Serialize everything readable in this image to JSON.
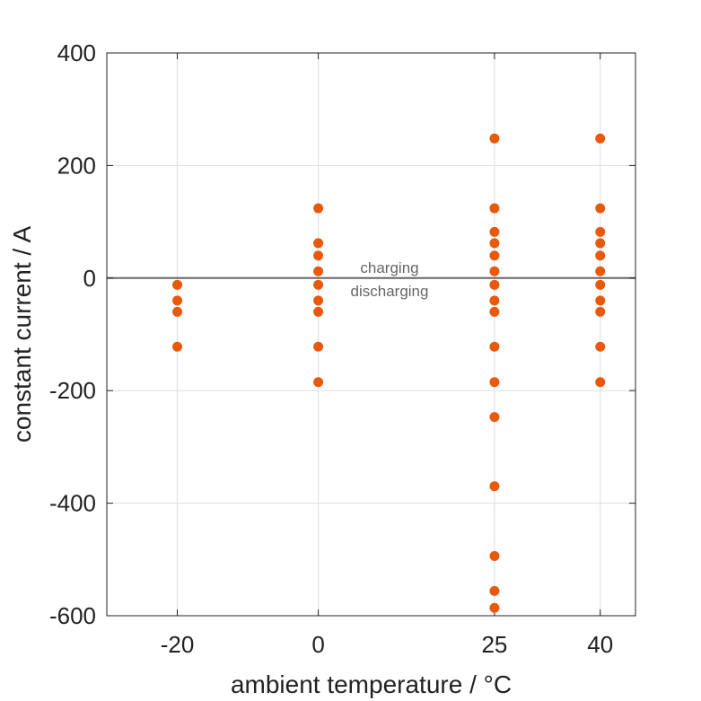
{
  "chart_data": {
    "type": "scatter",
    "xlabel": "ambient temperature / °C",
    "ylabel": "constant current / A",
    "xlim": [
      -30,
      45
    ],
    "ylim": [
      -600,
      400
    ],
    "xticks": [
      -20,
      0,
      25,
      40
    ],
    "xtick_labels": [
      "-20",
      "0",
      "25",
      "40"
    ],
    "yticks": [
      400,
      200,
      0,
      -200,
      -400,
      -600
    ],
    "ytick_labels": [
      "400",
      "200",
      "0",
      "-200",
      "-400",
      "-600"
    ],
    "grid": true,
    "reference_line_y": 0,
    "annotations": {
      "above": "charging",
      "below": "discharging"
    },
    "colors": {
      "points": "#e8590c",
      "reference_line": "#666666",
      "grid": "#dddddd",
      "frame": "#222222"
    },
    "series": [
      {
        "points": [
          {
            "x": -20,
            "y": -12
          },
          {
            "x": -20,
            "y": -40
          },
          {
            "x": -20,
            "y": -60
          },
          {
            "x": -20,
            "y": -122
          },
          {
            "x": 0,
            "y": 124
          },
          {
            "x": 0,
            "y": 62
          },
          {
            "x": 0,
            "y": 40
          },
          {
            "x": 0,
            "y": 12
          },
          {
            "x": 0,
            "y": -12
          },
          {
            "x": 0,
            "y": -40
          },
          {
            "x": 0,
            "y": -60
          },
          {
            "x": 0,
            "y": -122
          },
          {
            "x": 0,
            "y": -185
          },
          {
            "x": 25,
            "y": 248
          },
          {
            "x": 25,
            "y": 124
          },
          {
            "x": 25,
            "y": 82
          },
          {
            "x": 25,
            "y": 62
          },
          {
            "x": 25,
            "y": 40
          },
          {
            "x": 25,
            "y": 12
          },
          {
            "x": 25,
            "y": -12
          },
          {
            "x": 25,
            "y": -40
          },
          {
            "x": 25,
            "y": -60
          },
          {
            "x": 25,
            "y": -122
          },
          {
            "x": 25,
            "y": -185
          },
          {
            "x": 25,
            "y": -247
          },
          {
            "x": 25,
            "y": -370
          },
          {
            "x": 25,
            "y": -494
          },
          {
            "x": 25,
            "y": -556
          },
          {
            "x": 25,
            "y": -586
          },
          {
            "x": 40,
            "y": 248
          },
          {
            "x": 40,
            "y": 124
          },
          {
            "x": 40,
            "y": 82
          },
          {
            "x": 40,
            "y": 62
          },
          {
            "x": 40,
            "y": 40
          },
          {
            "x": 40,
            "y": 12
          },
          {
            "x": 40,
            "y": -12
          },
          {
            "x": 40,
            "y": -40
          },
          {
            "x": 40,
            "y": -60
          },
          {
            "x": 40,
            "y": -122
          },
          {
            "x": 40,
            "y": -185
          }
        ]
      }
    ]
  }
}
